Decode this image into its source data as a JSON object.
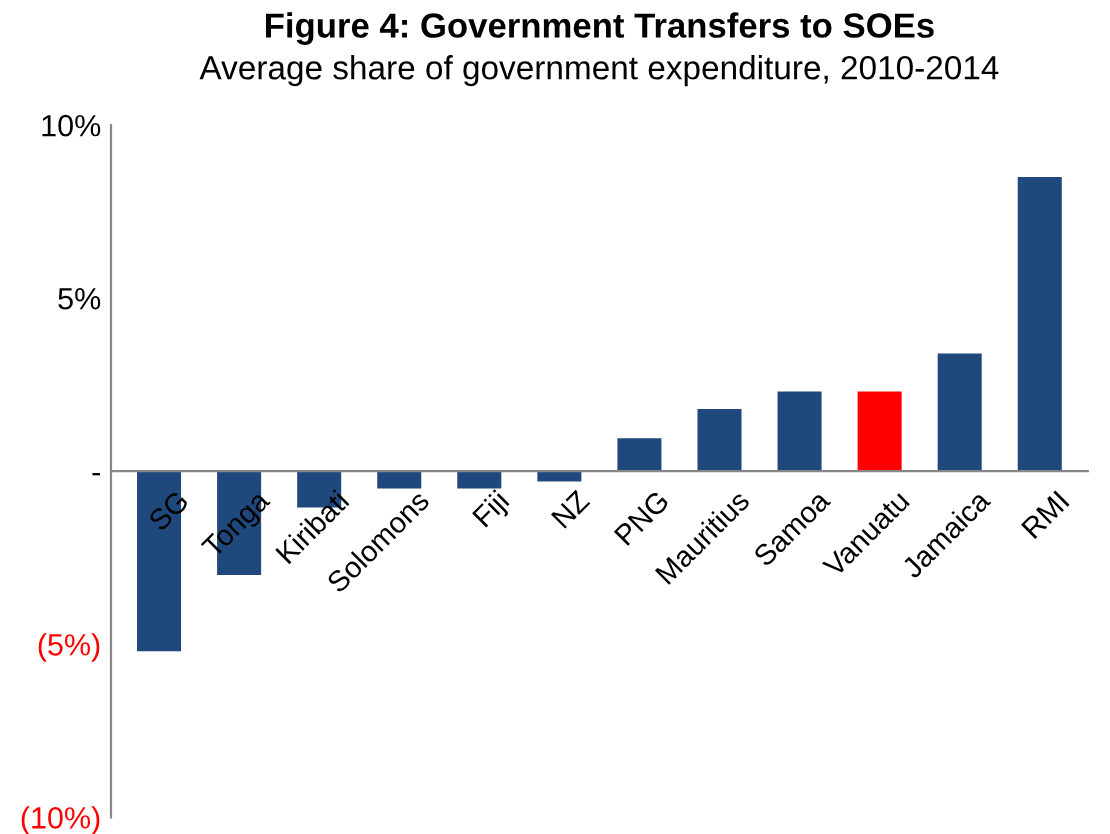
{
  "chart_data": {
    "type": "bar",
    "title": "Figure 4: Government Transfers to SOEs",
    "subtitle": "Average share of government expenditure, 2010-2014",
    "categories": [
      "SG",
      "Tonga",
      "Kiribati",
      "Solomons",
      "Fiji",
      "NZ",
      "PNG",
      "Mauritius",
      "Samoa",
      "Vanuatu",
      "Jamaica",
      "RMI"
    ],
    "values": [
      -5.2,
      -3.0,
      -1.05,
      -0.5,
      -0.5,
      -0.3,
      0.95,
      1.8,
      2.3,
      2.3,
      3.4,
      8.5
    ],
    "colors": [
      "#1f497d",
      "#1f497d",
      "#1f497d",
      "#1f497d",
      "#1f497d",
      "#1f497d",
      "#1f497d",
      "#1f497d",
      "#1f497d",
      "#ff0000",
      "#1f497d",
      "#1f497d"
    ],
    "ylim": [
      -10,
      10
    ],
    "yticks": [
      {
        "value": 10,
        "label": "10%"
      },
      {
        "value": 5,
        "label": "5%"
      },
      {
        "value": 0,
        "label": "-"
      },
      {
        "value": -5,
        "label": "(5%)"
      },
      {
        "value": -10,
        "label": "(10%)"
      }
    ],
    "grid": false
  }
}
